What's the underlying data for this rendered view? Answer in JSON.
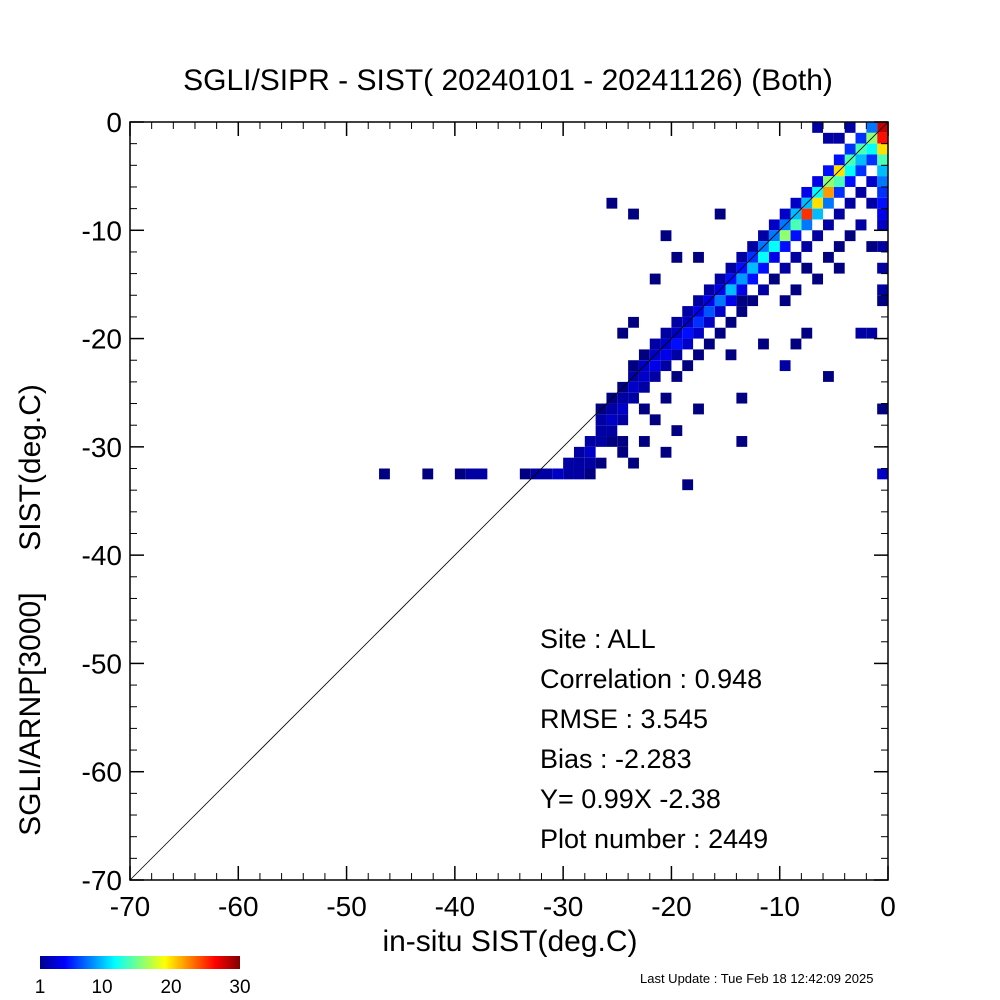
{
  "chart_data": {
    "type": "heatmap",
    "title": "SGLI/SIPR - SIST( 20240101 - 20241126) (Both)",
    "xlabel": "in-situ SIST(deg.C)",
    "ylabel": "SGLI/ARNP[3000]     SIST(deg.C)",
    "xlim": [
      -70,
      0
    ],
    "ylim": [
      -70,
      0
    ],
    "x_ticks": [
      "-70",
      "-60",
      "-50",
      "-40",
      "-30",
      "-20",
      "-10",
      "0"
    ],
    "y_ticks": [
      "-70",
      "-60",
      "-50",
      "-40",
      "-30",
      "-20",
      "-10",
      "0"
    ],
    "bin_size": 1,
    "colorbar": {
      "ticks": [
        "1",
        "10",
        "20",
        "30"
      ],
      "min": 1,
      "max": 30,
      "colormap": "jet"
    },
    "one_to_one_line": true,
    "grid": false,
    "stats": [
      "Site : ALL",
      "Correlation :    0.948",
      "RMSE :    3.545",
      "Bias :   -2.283",
      "Y=   0.99X  -2.38",
      "Plot number :      2449"
    ],
    "cells": [
      [
        -1,
        -1,
        28
      ],
      [
        -1,
        -2,
        26
      ],
      [
        -1,
        -3,
        20
      ],
      [
        -1,
        -4,
        14
      ],
      [
        -1,
        -5,
        10
      ],
      [
        -1,
        -6,
        8
      ],
      [
        -1,
        -7,
        6
      ],
      [
        -1,
        -8,
        5
      ],
      [
        -1,
        -9,
        4
      ],
      [
        -1,
        -10,
        3
      ],
      [
        -1,
        -12,
        2
      ],
      [
        -1,
        -14,
        2
      ],
      [
        -1,
        -16,
        2
      ],
      [
        -1,
        -17,
        1
      ],
      [
        -1,
        -33,
        3
      ],
      [
        -2,
        -1,
        8
      ],
      [
        -2,
        -2,
        16
      ],
      [
        -2,
        -3,
        12
      ],
      [
        -2,
        -4,
        6
      ],
      [
        -2,
        -6,
        3
      ],
      [
        -2,
        -8,
        2
      ],
      [
        -2,
        -12,
        1
      ],
      [
        -2,
        -20,
        2
      ],
      [
        -3,
        -2,
        6
      ],
      [
        -3,
        -3,
        14
      ],
      [
        -3,
        -4,
        10
      ],
      [
        -3,
        -5,
        6
      ],
      [
        -3,
        -7,
        2
      ],
      [
        -3,
        -10,
        1
      ],
      [
        -3,
        -20,
        2
      ],
      [
        -4,
        -1,
        2
      ],
      [
        -4,
        -3,
        6
      ],
      [
        -4,
        -4,
        14
      ],
      [
        -4,
        -5,
        12
      ],
      [
        -4,
        -6,
        5
      ],
      [
        -4,
        -8,
        2
      ],
      [
        -4,
        -11,
        1
      ],
      [
        -5,
        -2,
        2
      ],
      [
        -5,
        -4,
        5
      ],
      [
        -5,
        -5,
        20
      ],
      [
        -5,
        -6,
        14
      ],
      [
        -5,
        -7,
        6
      ],
      [
        -5,
        -9,
        2
      ],
      [
        -5,
        -12,
        1
      ],
      [
        -6,
        -2,
        2
      ],
      [
        -6,
        -5,
        5
      ],
      [
        -6,
        -6,
        16
      ],
      [
        -6,
        -7,
        22
      ],
      [
        -6,
        -8,
        8
      ],
      [
        -6,
        -10,
        2
      ],
      [
        -6,
        -13,
        1
      ],
      [
        -7,
        -1,
        2
      ],
      [
        -7,
        -6,
        4
      ],
      [
        -7,
        -7,
        12
      ],
      [
        -7,
        -8,
        20
      ],
      [
        -7,
        -9,
        10
      ],
      [
        -7,
        -11,
        2
      ],
      [
        -7,
        -15,
        1
      ],
      [
        -8,
        -7,
        4
      ],
      [
        -8,
        -8,
        10
      ],
      [
        -8,
        -9,
        25
      ],
      [
        -8,
        -10,
        8
      ],
      [
        -8,
        -12,
        2
      ],
      [
        -8,
        -14,
        1
      ],
      [
        -9,
        -8,
        3
      ],
      [
        -9,
        -9,
        10
      ],
      [
        -9,
        -10,
        14
      ],
      [
        -9,
        -11,
        5
      ],
      [
        -9,
        -13,
        2
      ],
      [
        -9,
        -16,
        1
      ],
      [
        -10,
        -9,
        3
      ],
      [
        -10,
        -10,
        8
      ],
      [
        -10,
        -11,
        16
      ],
      [
        -10,
        -12,
        5
      ],
      [
        -10,
        -14,
        2
      ],
      [
        -10,
        -17,
        1
      ],
      [
        -11,
        -10,
        3
      ],
      [
        -11,
        -11,
        8
      ],
      [
        -11,
        -12,
        12
      ],
      [
        -11,
        -13,
        4
      ],
      [
        -11,
        -15,
        1
      ],
      [
        -12,
        -11,
        2
      ],
      [
        -12,
        -12,
        8
      ],
      [
        -12,
        -13,
        12
      ],
      [
        -12,
        -14,
        5
      ],
      [
        -12,
        -16,
        2
      ],
      [
        -13,
        -12,
        2
      ],
      [
        -13,
        -13,
        6
      ],
      [
        -13,
        -14,
        10
      ],
      [
        -13,
        -15,
        5
      ],
      [
        -13,
        -17,
        1
      ],
      [
        -14,
        -13,
        2
      ],
      [
        -14,
        -14,
        5
      ],
      [
        -14,
        -15,
        9
      ],
      [
        -14,
        -16,
        4
      ],
      [
        -14,
        -18,
        1
      ],
      [
        -15,
        -14,
        2
      ],
      [
        -15,
        -15,
        5
      ],
      [
        -15,
        -16,
        10
      ],
      [
        -15,
        -17,
        4
      ],
      [
        -15,
        -19,
        1
      ],
      [
        -16,
        -15,
        2
      ],
      [
        -16,
        -16,
        4
      ],
      [
        -16,
        -17,
        8
      ],
      [
        -16,
        -18,
        3
      ],
      [
        -16,
        -20,
        1
      ],
      [
        -17,
        -16,
        2
      ],
      [
        -17,
        -17,
        4
      ],
      [
        -17,
        -18,
        7
      ],
      [
        -17,
        -19,
        3
      ],
      [
        -17,
        -21,
        1
      ],
      [
        -18,
        -17,
        2
      ],
      [
        -18,
        -18,
        4
      ],
      [
        -18,
        -19,
        6
      ],
      [
        -18,
        -20,
        3
      ],
      [
        -18,
        -22,
        1
      ],
      [
        -19,
        -18,
        2
      ],
      [
        -19,
        -19,
        3
      ],
      [
        -19,
        -20,
        5
      ],
      [
        -19,
        -21,
        3
      ],
      [
        -19,
        -23,
        1
      ],
      [
        -20,
        -19,
        2
      ],
      [
        -20,
        -20,
        3
      ],
      [
        -20,
        -21,
        5
      ],
      [
        -20,
        -22,
        2
      ],
      [
        -20,
        -24,
        1
      ],
      [
        -21,
        -20,
        2
      ],
      [
        -21,
        -21,
        3
      ],
      [
        -21,
        -22,
        4
      ],
      [
        -21,
        -23,
        2
      ],
      [
        -21,
        -26,
        1
      ],
      [
        -22,
        -21,
        2
      ],
      [
        -22,
        -22,
        3
      ],
      [
        -22,
        -23,
        4
      ],
      [
        -22,
        -24,
        2
      ],
      [
        -23,
        -22,
        1
      ],
      [
        -23,
        -23,
        3
      ],
      [
        -23,
        -24,
        3
      ],
      [
        -23,
        -25,
        2
      ],
      [
        -23,
        -27,
        1
      ],
      [
        -24,
        -23,
        1
      ],
      [
        -24,
        -24,
        2
      ],
      [
        -24,
        -25,
        3
      ],
      [
        -24,
        -26,
        2
      ],
      [
        -25,
        -25,
        1
      ],
      [
        -25,
        -26,
        2
      ],
      [
        -25,
        -27,
        3
      ],
      [
        -25,
        -28,
        2
      ],
      [
        -25,
        -30,
        1
      ],
      [
        -26,
        -26,
        1
      ],
      [
        -26,
        -27,
        2
      ],
      [
        -26,
        -28,
        3
      ],
      [
        -26,
        -29,
        2
      ],
      [
        -27,
        -27,
        1
      ],
      [
        -27,
        -28,
        2
      ],
      [
        -27,
        -29,
        2
      ],
      [
        -27,
        -30,
        2
      ],
      [
        -27,
        -32,
        1
      ],
      [
        -28,
        -30,
        2
      ],
      [
        -28,
        -31,
        3
      ],
      [
        -28,
        -32,
        2
      ],
      [
        -28,
        -33,
        1
      ],
      [
        -29,
        -31,
        2
      ],
      [
        -29,
        -32,
        2
      ],
      [
        -29,
        -33,
        2
      ],
      [
        -30,
        -32,
        2
      ],
      [
        -30,
        -33,
        2
      ],
      [
        -31,
        -33,
        3
      ],
      [
        -32,
        -33,
        2
      ],
      [
        -33,
        -33,
        2
      ],
      [
        -34,
        -33,
        1
      ],
      [
        -38,
        -33,
        2
      ],
      [
        -39,
        -33,
        2
      ],
      [
        -40,
        -33,
        1
      ],
      [
        -43,
        -33,
        1
      ],
      [
        -47,
        -33,
        1
      ],
      [
        -3,
        -10,
        2
      ],
      [
        -5,
        -14,
        1
      ],
      [
        -8,
        -20,
        1
      ],
      [
        -10,
        -23,
        2
      ],
      [
        -12,
        -21,
        1
      ],
      [
        -14,
        -17,
        1
      ],
      [
        -15,
        -22,
        1
      ],
      [
        -18,
        -13,
        1
      ],
      [
        -18,
        -27,
        1
      ],
      [
        -19,
        -34,
        1
      ],
      [
        -20,
        -29,
        1
      ],
      [
        -21,
        -31,
        1
      ],
      [
        -22,
        -28,
        1
      ],
      [
        -23,
        -30,
        1
      ],
      [
        -24,
        -32,
        1
      ],
      [
        -25,
        -31,
        1
      ],
      [
        -26,
        -30,
        1
      ],
      [
        -24,
        -9,
        1
      ],
      [
        -21,
        -11,
        1
      ],
      [
        -16,
        -9,
        1
      ],
      [
        -26,
        -8,
        1
      ],
      [
        -22,
        -15,
        1
      ],
      [
        -20,
        -13,
        1
      ],
      [
        -24,
        -19,
        1
      ],
      [
        -25,
        -20,
        1
      ],
      [
        -14,
        -26,
        1
      ],
      [
        -14,
        -30,
        1
      ],
      [
        -9,
        -21,
        1
      ],
      [
        -6,
        -24,
        1
      ],
      [
        -1,
        -27,
        1
      ]
    ]
  },
  "footer": {
    "last_update": "Last Update : Tue Feb 18 12:42:09 2025"
  }
}
